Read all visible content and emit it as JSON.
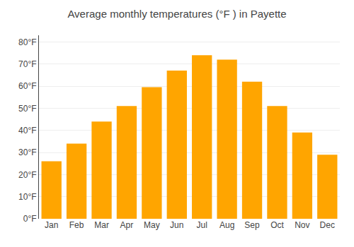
{
  "chart_data": {
    "type": "bar",
    "title": "Average monthly temperatures (°F ) in Payette",
    "categories": [
      "Jan",
      "Feb",
      "Mar",
      "Apr",
      "May",
      "Jun",
      "Jul",
      "Aug",
      "Sep",
      "Oct",
      "Nov",
      "Dec"
    ],
    "values": [
      26,
      34,
      44,
      51,
      59.5,
      67,
      74,
      72,
      62,
      51,
      39,
      29
    ],
    "color": "#FFA500",
    "ylim": [
      0,
      83
    ],
    "yticks": [
      {
        "value": 0,
        "label": "0°F"
      },
      {
        "value": 10,
        "label": "10°F"
      },
      {
        "value": 20,
        "label": "20°F"
      },
      {
        "value": 30,
        "label": "30°F"
      },
      {
        "value": 40,
        "label": "40°F"
      },
      {
        "value": 50,
        "label": "50°F"
      },
      {
        "value": 60,
        "label": "60°F"
      },
      {
        "value": 70,
        "label": "70°F"
      },
      {
        "value": 80,
        "label": "80°F"
      }
    ],
    "grid": true
  }
}
